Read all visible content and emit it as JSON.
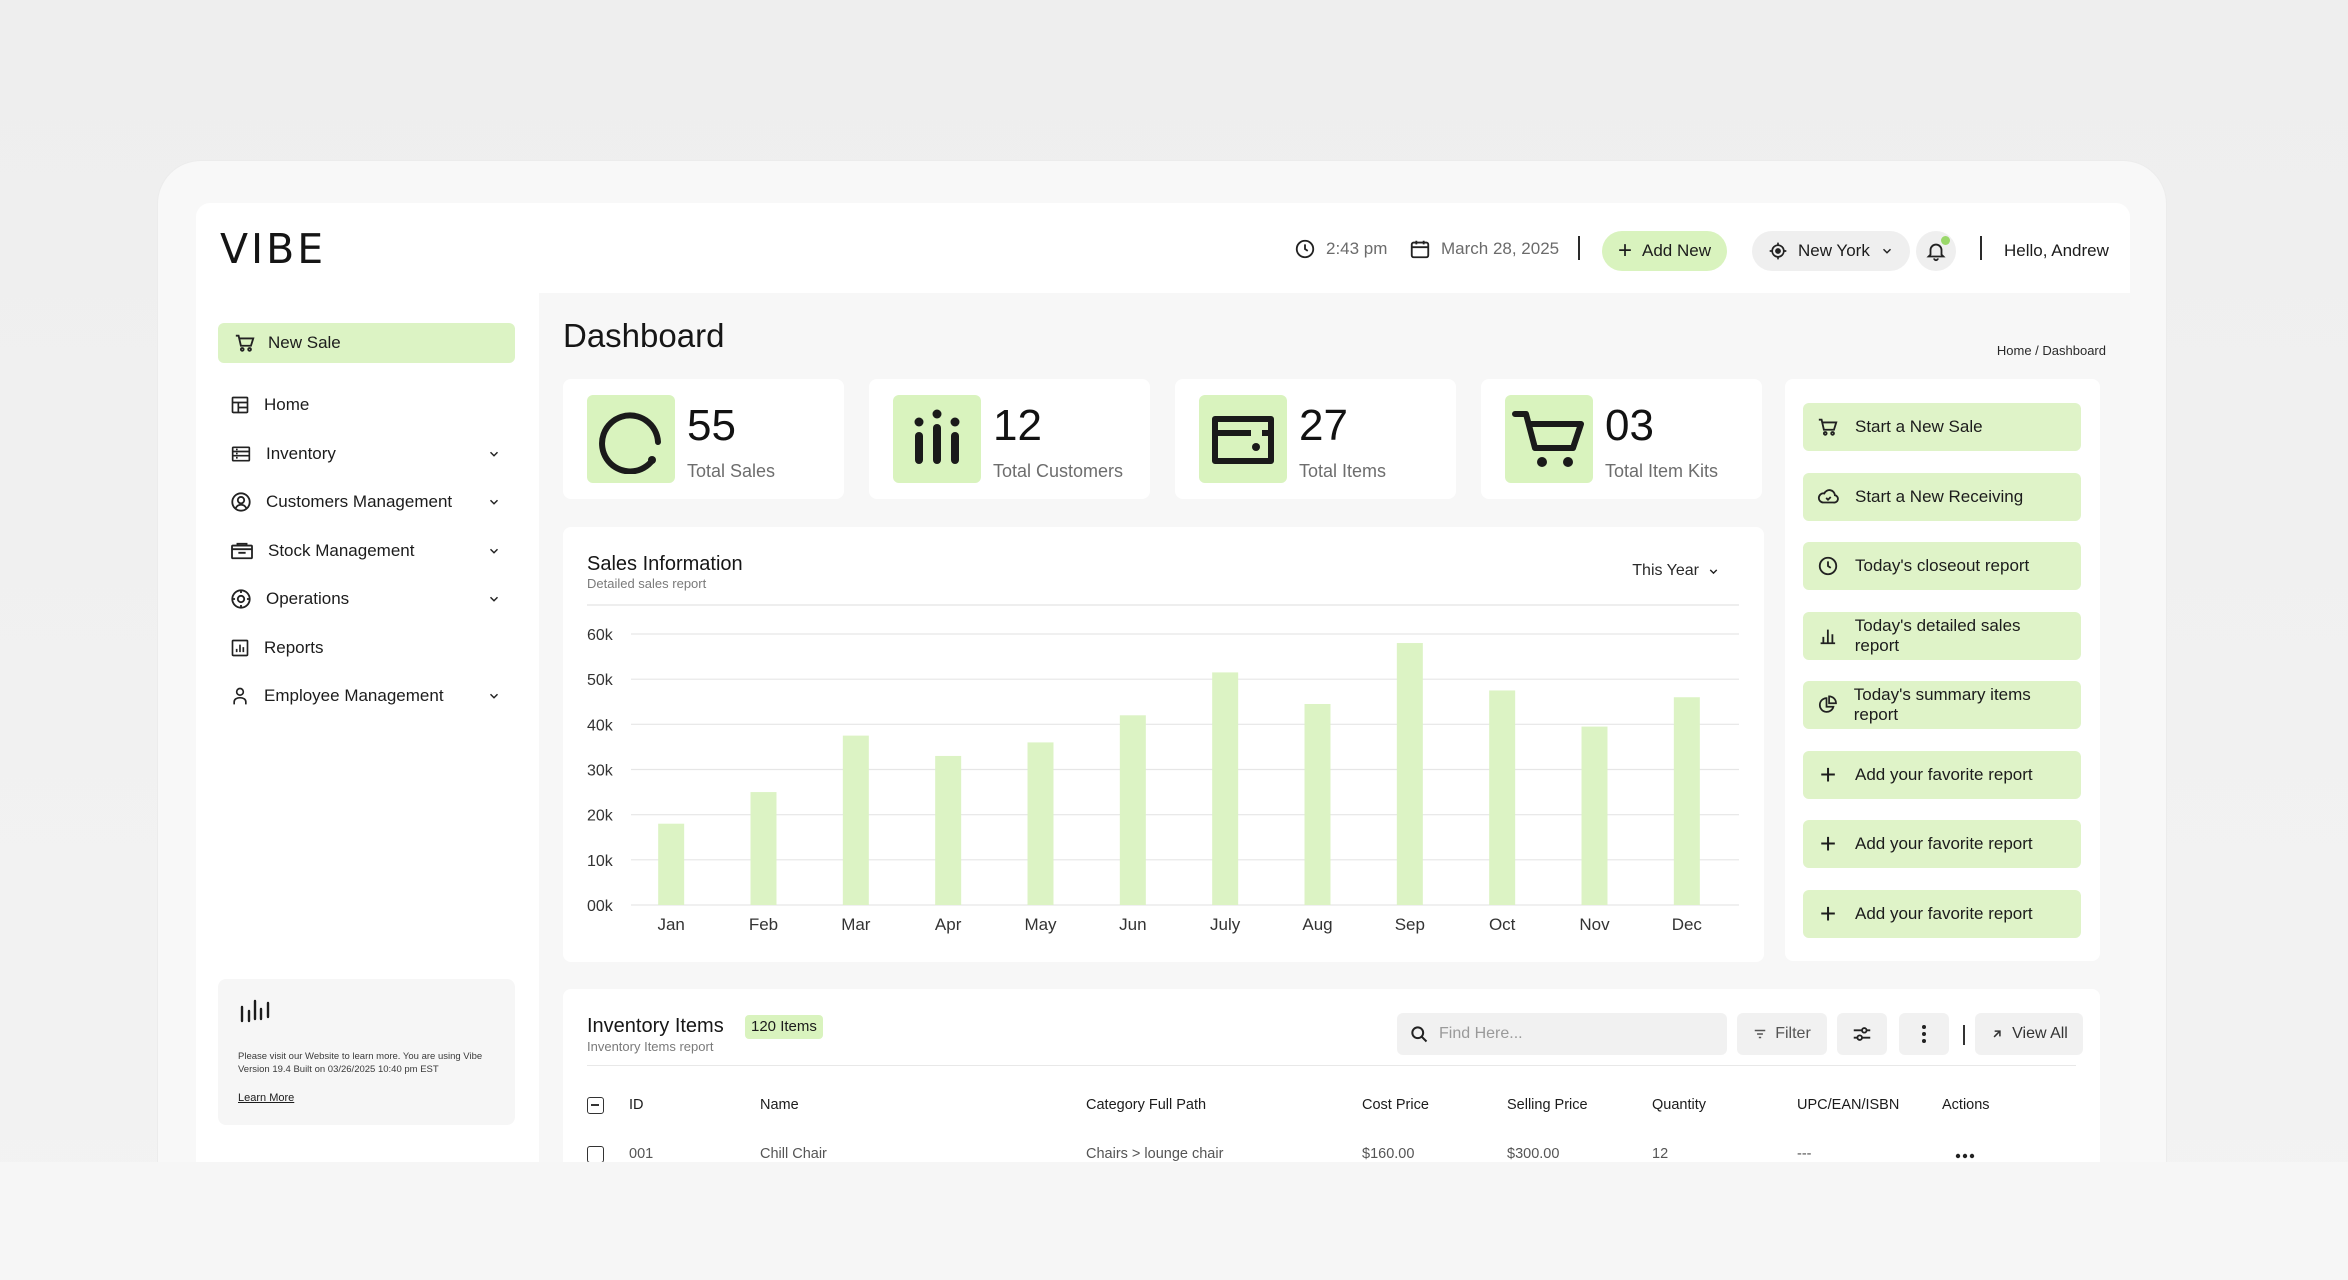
{
  "app": {
    "logo": "VIBE"
  },
  "header": {
    "time": "2:43 pm",
    "date": "March 28, 2025",
    "add_new_label": "Add New",
    "location": "New York",
    "greeting": "Hello, Andrew"
  },
  "sidebar": {
    "new_sale_label": "New Sale",
    "items": [
      {
        "label": "Home",
        "icon": "home-icon",
        "has_children": false
      },
      {
        "label": "Inventory",
        "icon": "inventory-icon",
        "has_children": true
      },
      {
        "label": "Customers Management",
        "icon": "customer-icon",
        "has_children": true
      },
      {
        "label": "Stock Management",
        "icon": "stock-icon",
        "has_children": true
      },
      {
        "label": "Operations",
        "icon": "operations-icon",
        "has_children": true
      },
      {
        "label": "Reports",
        "icon": "reports-icon",
        "has_children": false
      },
      {
        "label": "Employee Management",
        "icon": "employee-icon",
        "has_children": true
      }
    ],
    "info_card": {
      "version_text": "Please visit our Website to learn more. You are using Vibe Version 19.4 Built on 03/26/2025 10:40 pm EST",
      "learn_more_label": "Learn More"
    }
  },
  "page": {
    "title": "Dashboard",
    "breadcrumb": "Home / Dashboard"
  },
  "stats": [
    {
      "value": "55",
      "label": "Total Sales",
      "icon": "sales-gauge-icon"
    },
    {
      "value": "12",
      "label": "Total Customers",
      "icon": "customers-icon"
    },
    {
      "value": "27",
      "label": "Total Items",
      "icon": "items-box-icon"
    },
    {
      "value": "03",
      "label": "Total Item Kits",
      "icon": "cart-icon"
    }
  ],
  "sales_card": {
    "title": "Sales Information",
    "subtitle": "Detailed sales report",
    "range_label": "This Year"
  },
  "chart_data": {
    "type": "bar",
    "categories": [
      "Jan",
      "Feb",
      "Mar",
      "Apr",
      "May",
      "Jun",
      "July",
      "Aug",
      "Sep",
      "Oct",
      "Nov",
      "Dec"
    ],
    "values": [
      18000,
      25000,
      37500,
      33000,
      36000,
      42000,
      51500,
      44500,
      58000,
      47500,
      39500,
      46000
    ],
    "ylim": [
      0,
      60000
    ],
    "yticks": [
      0,
      10000,
      20000,
      30000,
      40000,
      50000,
      60000
    ],
    "ytick_labels": [
      "00k",
      "10k",
      "20k",
      "30k",
      "40k",
      "50k",
      "60k"
    ],
    "title": "Sales Information",
    "grid": true,
    "bar_color": "#dcf3c4"
  },
  "quick_actions": [
    {
      "label": "Start a New Sale",
      "icon": "cart-icon"
    },
    {
      "label": "Start a New Receiving",
      "icon": "receiving-icon"
    },
    {
      "label": "Today's closeout report",
      "icon": "clock-icon"
    },
    {
      "label": "Today's detailed sales report",
      "icon": "bar-chart-icon"
    },
    {
      "label": "Today's summary items report",
      "icon": "pie-chart-icon"
    },
    {
      "label": "Add your favorite report",
      "icon": "plus-icon"
    },
    {
      "label": "Add your favorite report",
      "icon": "plus-icon"
    },
    {
      "label": "Add your favorite report",
      "icon": "plus-icon"
    }
  ],
  "inventory": {
    "title": "Inventory Items",
    "badge": "120 Items",
    "subtitle": "Inventory Items report",
    "search_placeholder": "Find Here...",
    "filter_label": "Filter",
    "view_all_label": "View All",
    "columns": [
      "ID",
      "Name",
      "Category Full Path",
      "Cost Price",
      "Selling Price",
      "Quantity",
      "UPC/EAN/ISBN",
      "Actions"
    ],
    "rows": [
      [
        "001",
        "Chill Chair",
        "Chairs > lounge chair",
        "$160.00",
        "$300.00",
        "12",
        "---"
      ]
    ]
  },
  "colors": {
    "accent": "#d9f3be",
    "accent_strong": "#9ad86a",
    "text": "#1c1c1c"
  }
}
